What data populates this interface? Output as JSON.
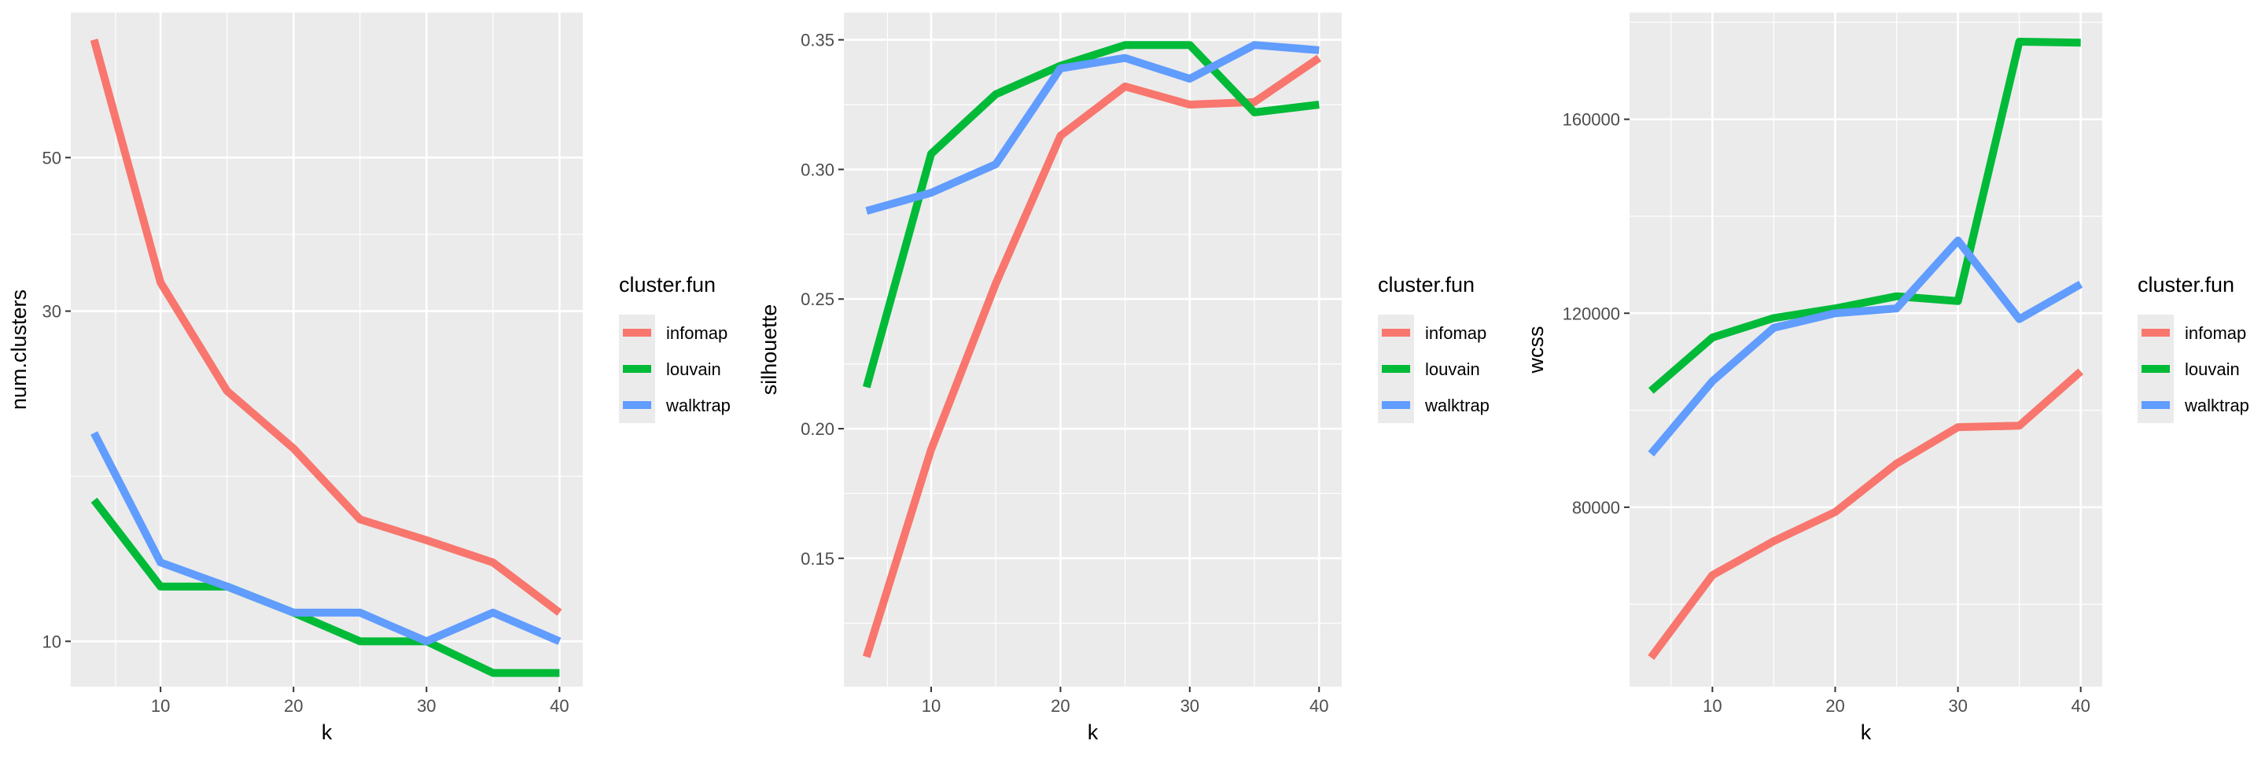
{
  "colors": {
    "panel_bg": "#EBEBEB",
    "grid_major": "#FFFFFF",
    "infomap": "#F8766D",
    "louvain": "#00BA38",
    "walktrap": "#619CFF"
  },
  "chart_data": [
    {
      "type": "line",
      "xlabel": "k",
      "ylabel": "num.clusters",
      "y_scale": "log10",
      "x": [
        5,
        10,
        15,
        20,
        25,
        30,
        35,
        40
      ],
      "xticks": [
        10,
        20,
        30,
        40
      ],
      "yticks": [
        10,
        30,
        50
      ],
      "xlim": [
        3.25,
        41.75
      ],
      "ylim": [
        8.6,
        81
      ],
      "legend_title": "cluster.fun",
      "legend_position": "right",
      "grid": true,
      "series": [
        {
          "name": "infomap",
          "values": [
            74,
            33,
            23,
            19,
            15,
            14,
            13,
            11
          ]
        },
        {
          "name": "louvain",
          "values": [
            16,
            12,
            12,
            11,
            10,
            10,
            9,
            9
          ]
        },
        {
          "name": "walktrap",
          "values": [
            20,
            13,
            12,
            11,
            11,
            10,
            11,
            10
          ]
        }
      ]
    },
    {
      "type": "line",
      "xlabel": "k",
      "ylabel": "silhouette",
      "y_scale": "linear",
      "x": [
        5,
        10,
        15,
        20,
        25,
        30,
        35,
        40
      ],
      "xticks": [
        10,
        20,
        30,
        40
      ],
      "yticks": [
        0.15,
        0.2,
        0.25,
        0.3,
        0.35
      ],
      "ytick_labels": [
        "0.15",
        "0.20",
        "0.25",
        "0.30",
        "0.35"
      ],
      "xlim": [
        3.25,
        41.75
      ],
      "ylim": [
        0.1005,
        0.3605
      ],
      "legend_title": "cluster.fun",
      "legend_position": "right",
      "grid": true,
      "series": [
        {
          "name": "infomap",
          "values": [
            0.112,
            0.192,
            0.256,
            0.313,
            0.332,
            0.325,
            0.326,
            0.343
          ]
        },
        {
          "name": "louvain",
          "values": [
            0.216,
            0.306,
            0.329,
            0.34,
            0.348,
            0.348,
            0.322,
            0.325
          ]
        },
        {
          "name": "walktrap",
          "values": [
            0.284,
            0.291,
            0.302,
            0.339,
            0.343,
            0.335,
            0.348,
            0.346
          ]
        }
      ]
    },
    {
      "type": "line",
      "xlabel": "k",
      "ylabel": "wcss",
      "y_scale": "linear",
      "x": [
        5,
        10,
        15,
        20,
        25,
        30,
        35,
        40
      ],
      "xticks": [
        10,
        20,
        30,
        40
      ],
      "yticks": [
        80000,
        120000,
        160000
      ],
      "ytick_labels": [
        "80000",
        "120000",
        "160000"
      ],
      "xlim": [
        3.25,
        41.75
      ],
      "ylim": [
        43000,
        182000
      ],
      "legend_title": "cluster.fun",
      "legend_position": "right",
      "grid": true,
      "series": [
        {
          "name": "infomap",
          "values": [
            49000,
            66000,
            73000,
            79000,
            89000,
            96500,
            96800,
            108000
          ]
        },
        {
          "name": "louvain",
          "values": [
            104000,
            115000,
            119000,
            121000,
            123500,
            122500,
            176000,
            175800
          ]
        },
        {
          "name": "walktrap",
          "values": [
            91000,
            106000,
            117000,
            120000,
            121000,
            135000,
            118800,
            126000
          ]
        }
      ]
    }
  ]
}
